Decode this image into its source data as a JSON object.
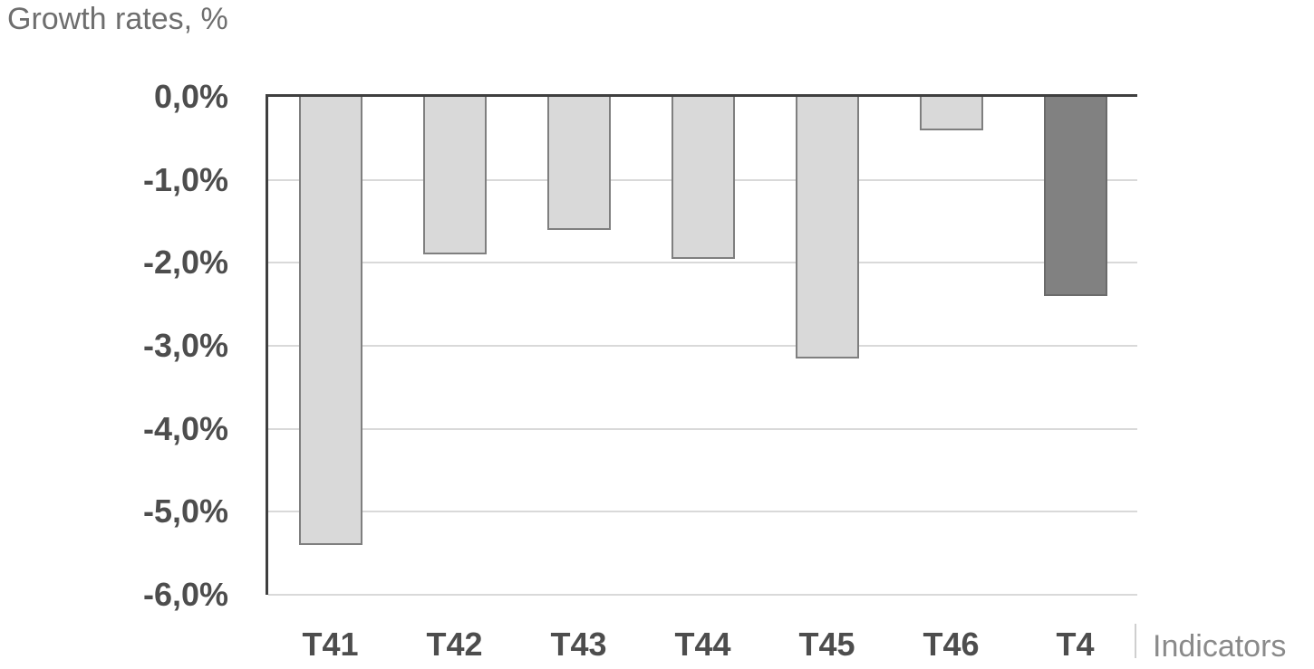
{
  "title": "Growth rates, %",
  "xaxis_title": "Indicators",
  "chart_data": {
    "type": "bar",
    "title": "Growth rates, %",
    "xlabel": "Indicators",
    "ylabel": "Growth rates, %",
    "categories": [
      "T41",
      "T42",
      "T43",
      "T44",
      "T45",
      "T46",
      "T4"
    ],
    "values": [
      -5.4,
      -1.9,
      -1.6,
      -1.95,
      -3.15,
      -0.4,
      -2.4
    ],
    "ylim": [
      -6.0,
      0.0
    ],
    "ytick_labels": [
      "0,0%",
      "-1,0%",
      "-2,0%",
      "-3,0%",
      "-4,0%",
      "-5,0%",
      "-6,0%"
    ],
    "decimal_separator": ",",
    "grid": true,
    "legend": false,
    "highlight_index": 6,
    "colors": {
      "bar_fill": "#d9d9d9",
      "bar_border": "#7f7f7f",
      "highlight_fill": "#818181",
      "highlight_border": "#6b6b6b",
      "gridline": "#d9d9d9",
      "axis_line": "#3f3f3f",
      "tick_label": "#4d4d4d",
      "title": "#6e6e6e",
      "xaxis_title": "#8a8a8a"
    }
  }
}
